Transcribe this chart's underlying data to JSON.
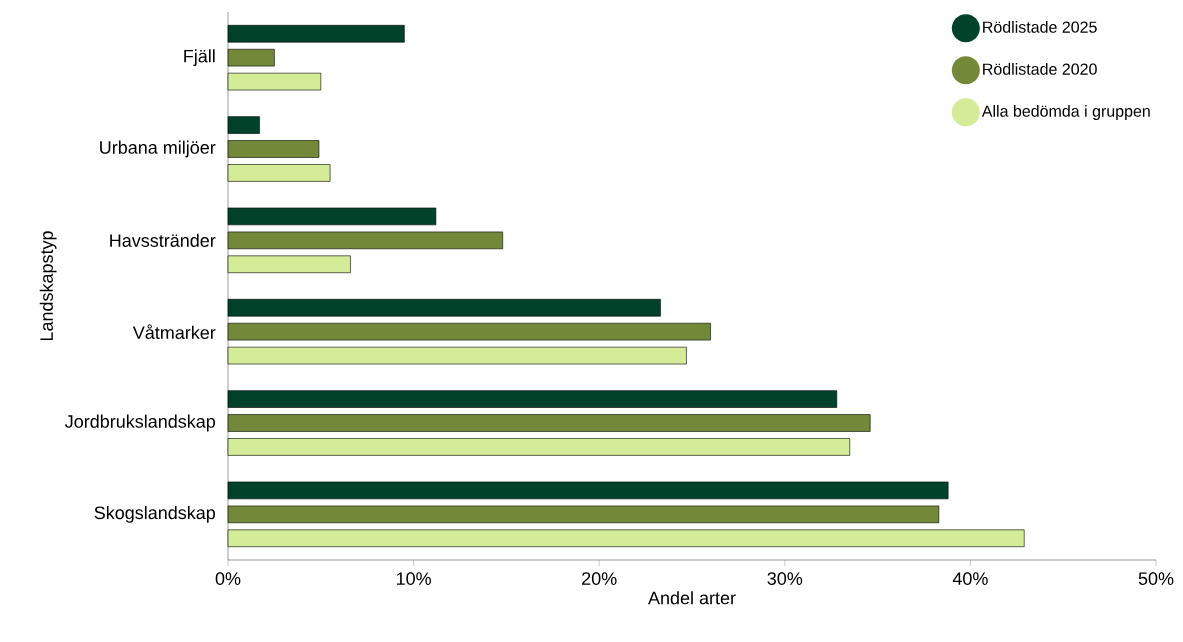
{
  "chart_data": {
    "type": "bar",
    "orientation": "horizontal",
    "xlabel": "Andel arter",
    "ylabel": "Landskapstyp",
    "categories": [
      "Fjäll",
      "Urbana miljöer",
      "Havsstränder",
      "Våtmarker",
      "Jordbrukslandskap",
      "Skogslandskap"
    ],
    "series": [
      {
        "name": "Rödlistade 2025",
        "color": "#00432a",
        "values": [
          9.5,
          1.7,
          11.2,
          23.3,
          32.8,
          38.8
        ]
      },
      {
        "name": "Rödlistade 2020",
        "color": "#74883a",
        "values": [
          2.5,
          4.9,
          14.8,
          26.0,
          34.6,
          38.3
        ]
      },
      {
        "name": "Alla bedömda i gruppen",
        "color": "#d4ec98",
        "values": [
          5.0,
          5.5,
          6.6,
          24.7,
          33.5,
          42.9
        ]
      }
    ],
    "xlim": [
      0,
      50
    ],
    "xticks": [
      {
        "value": 0,
        "label": "0%"
      },
      {
        "value": 10,
        "label": "10%"
      },
      {
        "value": 20,
        "label": "20%"
      },
      {
        "value": 30,
        "label": "30%"
      },
      {
        "value": 40,
        "label": "40%"
      },
      {
        "value": 50,
        "label": "50%"
      }
    ],
    "grid": false,
    "legend": "top right"
  }
}
